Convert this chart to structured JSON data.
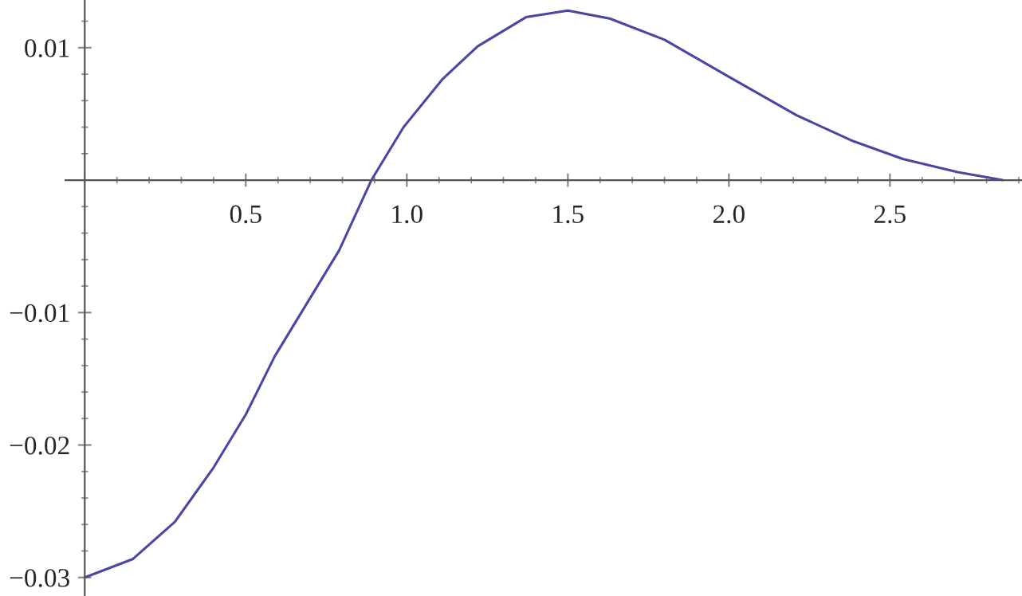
{
  "chart_data": {
    "type": "line",
    "x": [
      0,
      0.15,
      0.28,
      0.4,
      0.5,
      0.59,
      0.69,
      0.79,
      0.89,
      0.99,
      1.11,
      1.22,
      1.37,
      1.5,
      1.63,
      1.8,
      2.0,
      2.21,
      2.38,
      2.54,
      2.71,
      2.85
    ],
    "series": [
      {
        "color": "#4a47a3",
        "values": [
          -0.03,
          -0.0286,
          -0.0258,
          -0.0217,
          -0.0177,
          -0.0133,
          -0.0093,
          -0.0053,
          0,
          0.004,
          0.0076,
          0.0101,
          0.0123,
          0.0128,
          0.0122,
          0.0106,
          0.0078,
          0.0049,
          0.003,
          0.0016,
          0.0006,
          0
        ]
      }
    ],
    "xlim": [
      -0.06,
      2.91
    ],
    "ylim": [
      -0.0314,
      0.0136
    ],
    "xticks": [
      0.5,
      {
        "value": 1.0,
        "label": "1.0"
      },
      1.5,
      {
        "value": 2.0,
        "label": "2.0"
      },
      2.5
    ],
    "yticks": [
      {
        "value": -0.03,
        "label": "−0.03"
      },
      {
        "value": -0.02,
        "label": "−0.02"
      },
      {
        "value": -0.01,
        "label": "−0.01"
      },
      0.01
    ],
    "grid": false,
    "legend": false,
    "marker": "none",
    "line_style": "solid"
  }
}
